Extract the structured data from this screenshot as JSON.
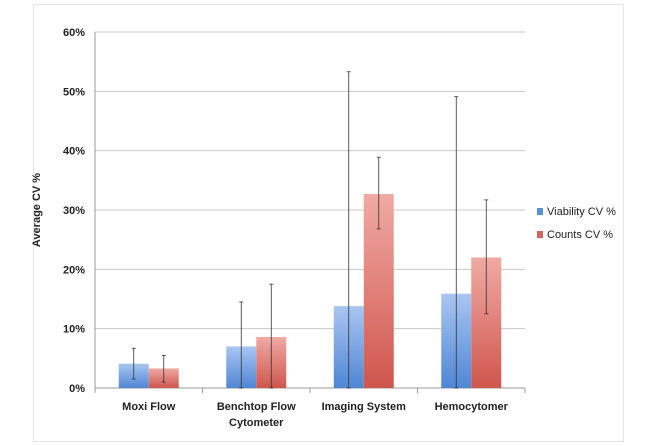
{
  "chart_data": {
    "type": "bar",
    "title": "",
    "xlabel": "",
    "ylabel": "Average CV %",
    "ylim": [
      0,
      60
    ],
    "yticks": [
      "0%",
      "10%",
      "20%",
      "30%",
      "40%",
      "50%",
      "60%"
    ],
    "grid": true,
    "legend_position": "right",
    "categories": [
      [
        "Moxi Flow"
      ],
      [
        "Benchtop Flow",
        "Cytometer"
      ],
      [
        "Imaging System"
      ],
      [
        "Hemocytomer"
      ]
    ],
    "series": [
      {
        "name": "Viability CV %",
        "color": "#5b8fd8",
        "values": [
          4.1,
          7.0,
          13.8,
          15.9
        ],
        "err_low": [
          1.5,
          0,
          0,
          0
        ],
        "err_high": [
          6.7,
          14.5,
          53.3,
          49.1
        ]
      },
      {
        "name": "Counts CV %",
        "color": "#d9625a",
        "values": [
          3.3,
          8.6,
          32.7,
          22.0
        ],
        "err_low": [
          1.0,
          0,
          26.8,
          12.5
        ],
        "err_high": [
          5.5,
          17.5,
          38.9,
          31.7
        ]
      }
    ]
  }
}
